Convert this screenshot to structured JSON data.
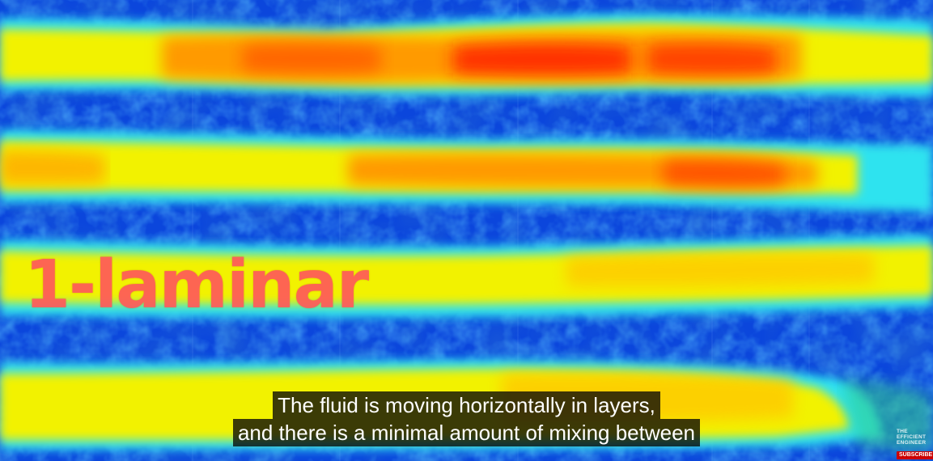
{
  "overlay": {
    "title": "1-laminar"
  },
  "captions": {
    "lines": [
      "The fluid is moving horizontally in layers,",
      "and there is a minimal amount of mixing between"
    ]
  },
  "branding": {
    "channel_lines": [
      "THE",
      "EFFICIENT",
      "ENGINEER"
    ],
    "subscribe_label": "SUBSCRIBE"
  },
  "colors": {
    "background_blue": "#0b46dc",
    "cyan_edge": "#2fe3ef",
    "yellow_core": "#f2f200",
    "orange_core": "#ff9a00",
    "red_core": "#ff1a00",
    "title_color": "#ff5a5a",
    "subscribe_red": "#cc0000"
  }
}
